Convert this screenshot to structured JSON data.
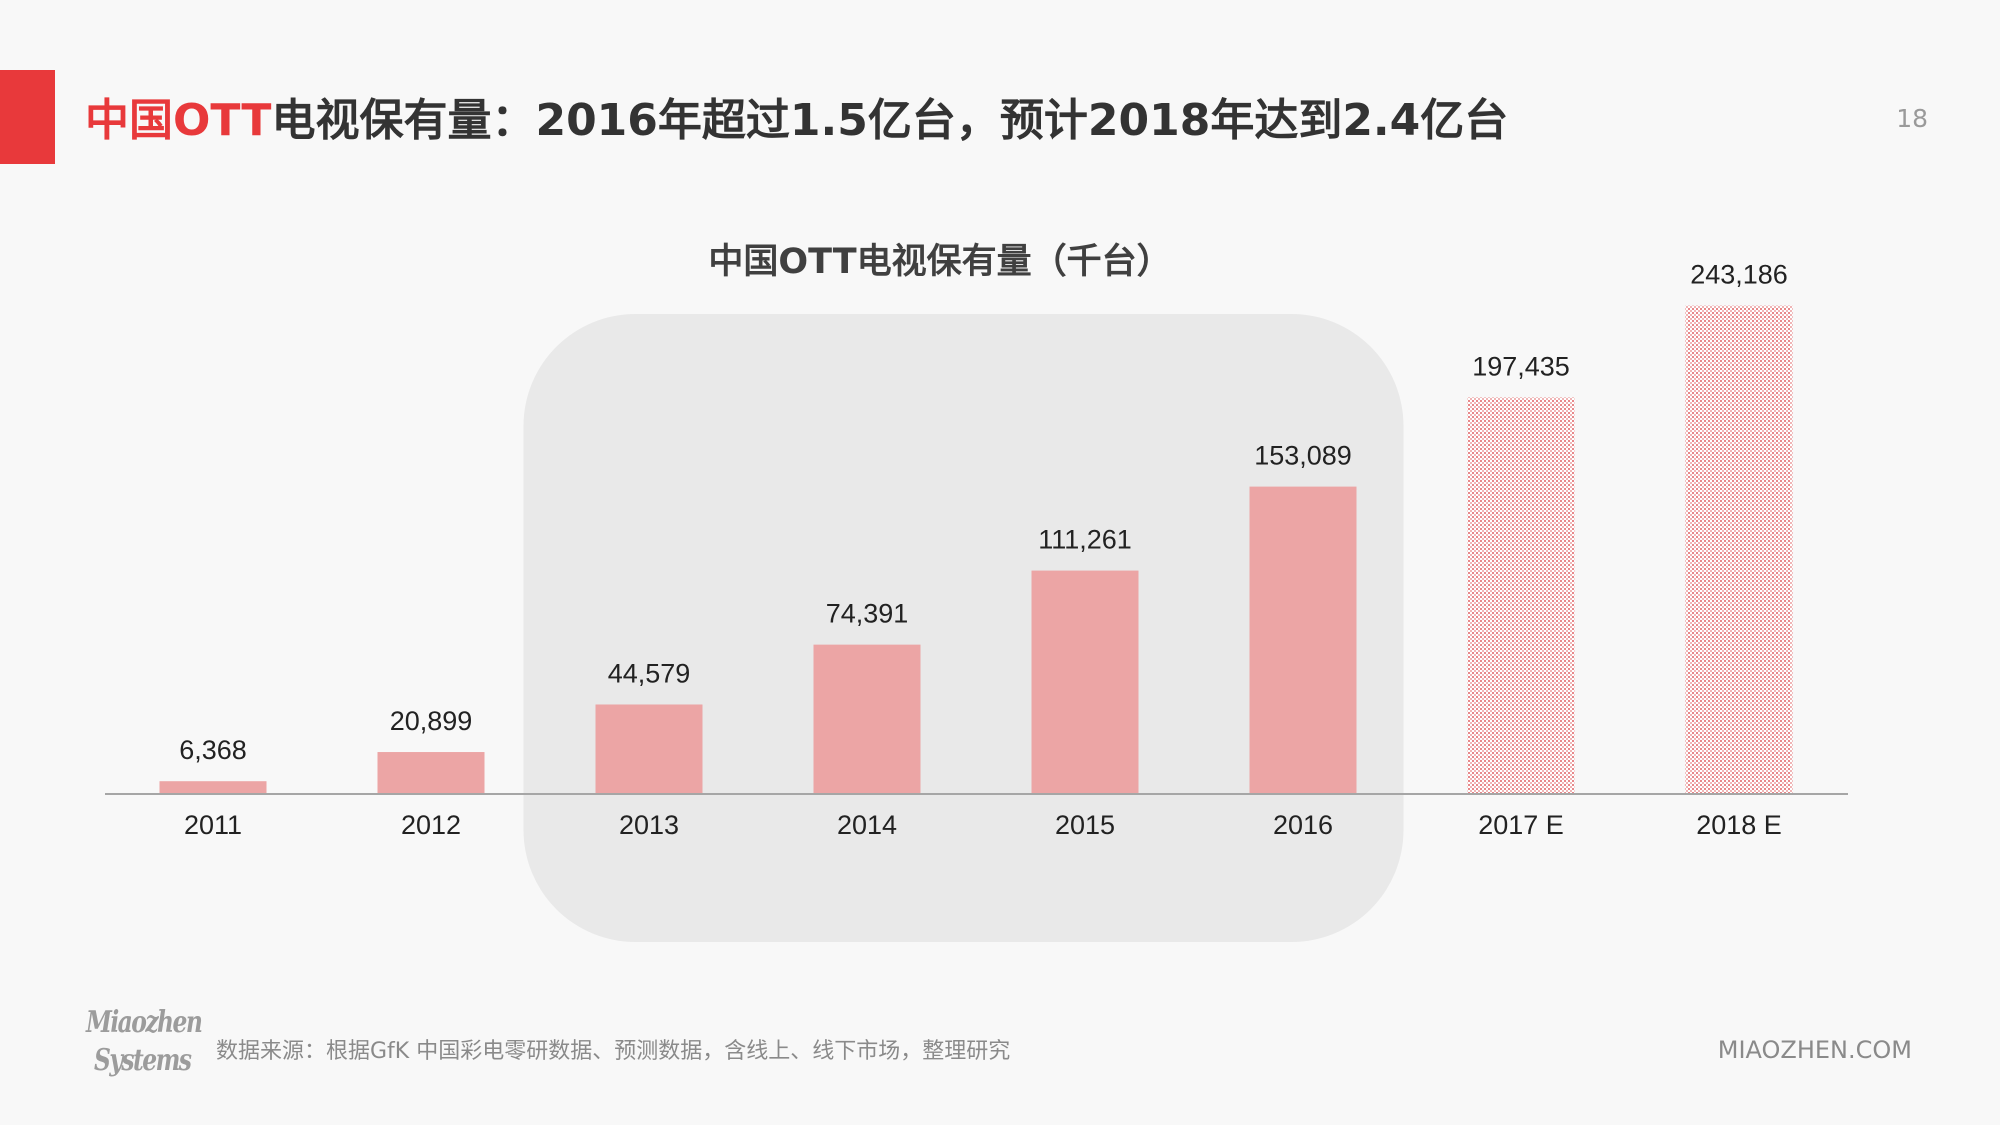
{
  "header": {
    "title_accent": "中国OTT",
    "title_rest": "电视保有量：2016年超过1.5亿台，预计2018年达到2.4亿台",
    "page_number": "18"
  },
  "colors": {
    "accent": "#e8393b",
    "bar": "#eca5a5",
    "highlight": "#e9e9e9",
    "axis": "#a6a6a6"
  },
  "chart_data": {
    "type": "bar",
    "title": "中国OTT电视保有量（千台）",
    "categories": [
      "2011",
      "2012",
      "2013",
      "2014",
      "2015",
      "2016",
      "2017 E",
      "2018 E"
    ],
    "values": [
      6368,
      20899,
      44579,
      74391,
      111261,
      153089,
      197435,
      243186
    ],
    "value_labels": [
      "6,368",
      "20,899",
      "44,579",
      "74,391",
      "111,261",
      "153,089",
      "197,435",
      "243,186"
    ],
    "estimated": [
      false,
      false,
      false,
      false,
      false,
      false,
      true,
      true
    ],
    "highlighted_categories": [
      "2013",
      "2014",
      "2015",
      "2016"
    ],
    "xlabel": "",
    "ylabel": "",
    "ylim": [
      0,
      250000
    ],
    "grid": false,
    "legend": "none"
  },
  "footer": {
    "logo_line1": "Miaozhen",
    "logo_line2": "Systems",
    "source": "数据来源：根据GfK 中国彩电零研数据、预测数据，含线上、线下市场，整理研究",
    "site": "MIAOZHEN.COM"
  }
}
